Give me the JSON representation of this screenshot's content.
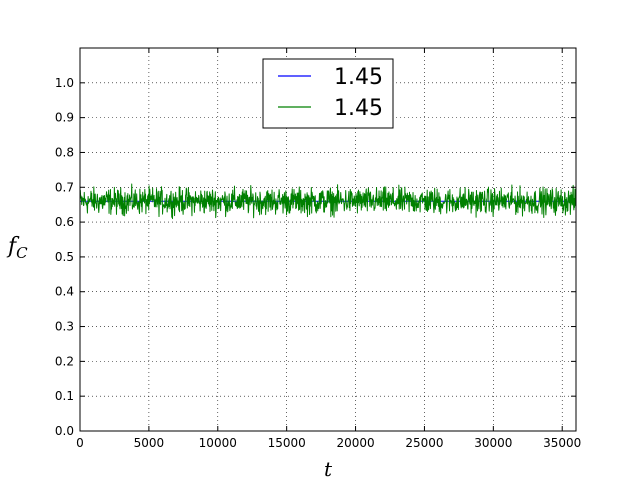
{
  "chart_data": {
    "type": "line",
    "title": "",
    "xlabel": "t",
    "ylabel": "f",
    "ylabel_subscript": "C",
    "xlim": [
      0,
      36000
    ],
    "ylim": [
      0.0,
      1.1
    ],
    "x_ticks": [
      0,
      5000,
      10000,
      15000,
      20000,
      25000,
      30000,
      35000
    ],
    "x_tick_labels": [
      "0",
      "5000",
      "10000",
      "15000",
      "20000",
      "25000",
      "30000",
      "35000"
    ],
    "y_ticks": [
      0.0,
      0.1,
      0.2,
      0.3,
      0.4,
      0.5,
      0.6,
      0.7,
      0.8,
      0.9,
      1.0
    ],
    "y_tick_labels": [
      "0.0",
      "0.1",
      "0.2",
      "0.3",
      "0.4",
      "0.5",
      "0.6",
      "0.7",
      "0.8",
      "0.9",
      "1.0"
    ],
    "grid": true,
    "legend_position": "top-center",
    "series": [
      {
        "name": "1.45",
        "color": "#0000ff",
        "x": [
          0,
          2000,
          4000,
          6000,
          8000,
          10000,
          12000,
          14000,
          16000,
          18000,
          20000,
          22000,
          24000,
          26000,
          28000,
          30000,
          32000,
          34000,
          36000
        ],
        "values": [
          0.66,
          0.66,
          0.66,
          0.66,
          0.66,
          0.66,
          0.66,
          0.66,
          0.66,
          0.66,
          0.66,
          0.66,
          0.66,
          0.66,
          0.66,
          0.66,
          0.66,
          0.66,
          0.66
        ]
      },
      {
        "name": "1.45",
        "color": "#008000",
        "x": [
          0,
          2000,
          4000,
          6000,
          8000,
          10000,
          12000,
          14000,
          16000,
          18000,
          20000,
          22000,
          24000,
          26000,
          28000,
          30000,
          32000,
          34000,
          36000
        ],
        "values": [
          0.66,
          0.66,
          0.66,
          0.66,
          0.66,
          0.66,
          0.66,
          0.66,
          0.66,
          0.66,
          0.66,
          0.66,
          0.66,
          0.66,
          0.66,
          0.66,
          0.66,
          0.66,
          0.66
        ],
        "range_low": 0.61,
        "range_high": 0.71
      }
    ]
  }
}
